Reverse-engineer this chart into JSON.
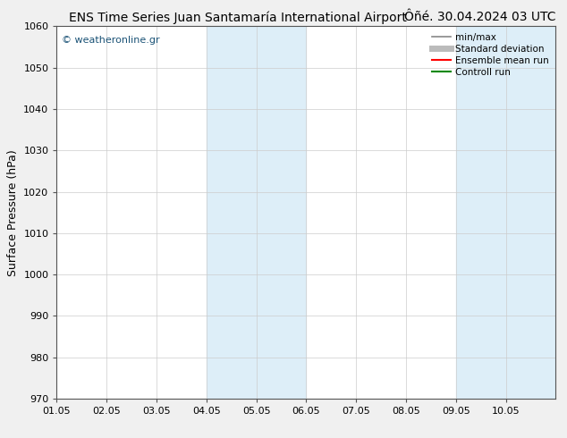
{
  "title_left": "ENS Time Series Juan Santamaría International Airport",
  "title_right": "Ôñé. 30.04.2024 03 UTC",
  "ylabel": "Surface Pressure (hPa)",
  "ylim": [
    970,
    1060
  ],
  "yticks": [
    970,
    980,
    990,
    1000,
    1010,
    1020,
    1030,
    1040,
    1050,
    1060
  ],
  "xlim": [
    0,
    10
  ],
  "x_tick_positions": [
    0,
    1,
    2,
    3,
    4,
    5,
    6,
    7,
    8,
    9
  ],
  "x_tick_labels": [
    "01.05",
    "02.05",
    "03.05",
    "04.05",
    "05.05",
    "06.05",
    "07.05",
    "08.05",
    "09.05",
    "10.05"
  ],
  "shaded_regions": [
    {
      "start": 3,
      "end": 5,
      "color": "#ddeef8"
    },
    {
      "start": 8,
      "end": 10,
      "color": "#ddeef8"
    }
  ],
  "watermark": "© weatheronline.gr",
  "watermark_color": "#1a5276",
  "bg_color": "#f0f0f0",
  "plot_bg_color": "#ffffff",
  "legend_items": [
    {
      "label": "min/max",
      "color": "#888888",
      "lw": 1.2,
      "style": "-"
    },
    {
      "label": "Standard deviation",
      "color": "#bbbbbb",
      "lw": 5,
      "style": "-"
    },
    {
      "label": "Ensemble mean run",
      "color": "#ff0000",
      "lw": 1.5,
      "style": "-"
    },
    {
      "label": "Controll run",
      "color": "#008800",
      "lw": 1.5,
      "style": "-"
    }
  ],
  "title_fontsize": 10,
  "ylabel_fontsize": 9,
  "tick_fontsize": 8,
  "legend_fontsize": 7.5,
  "watermark_fontsize": 8
}
